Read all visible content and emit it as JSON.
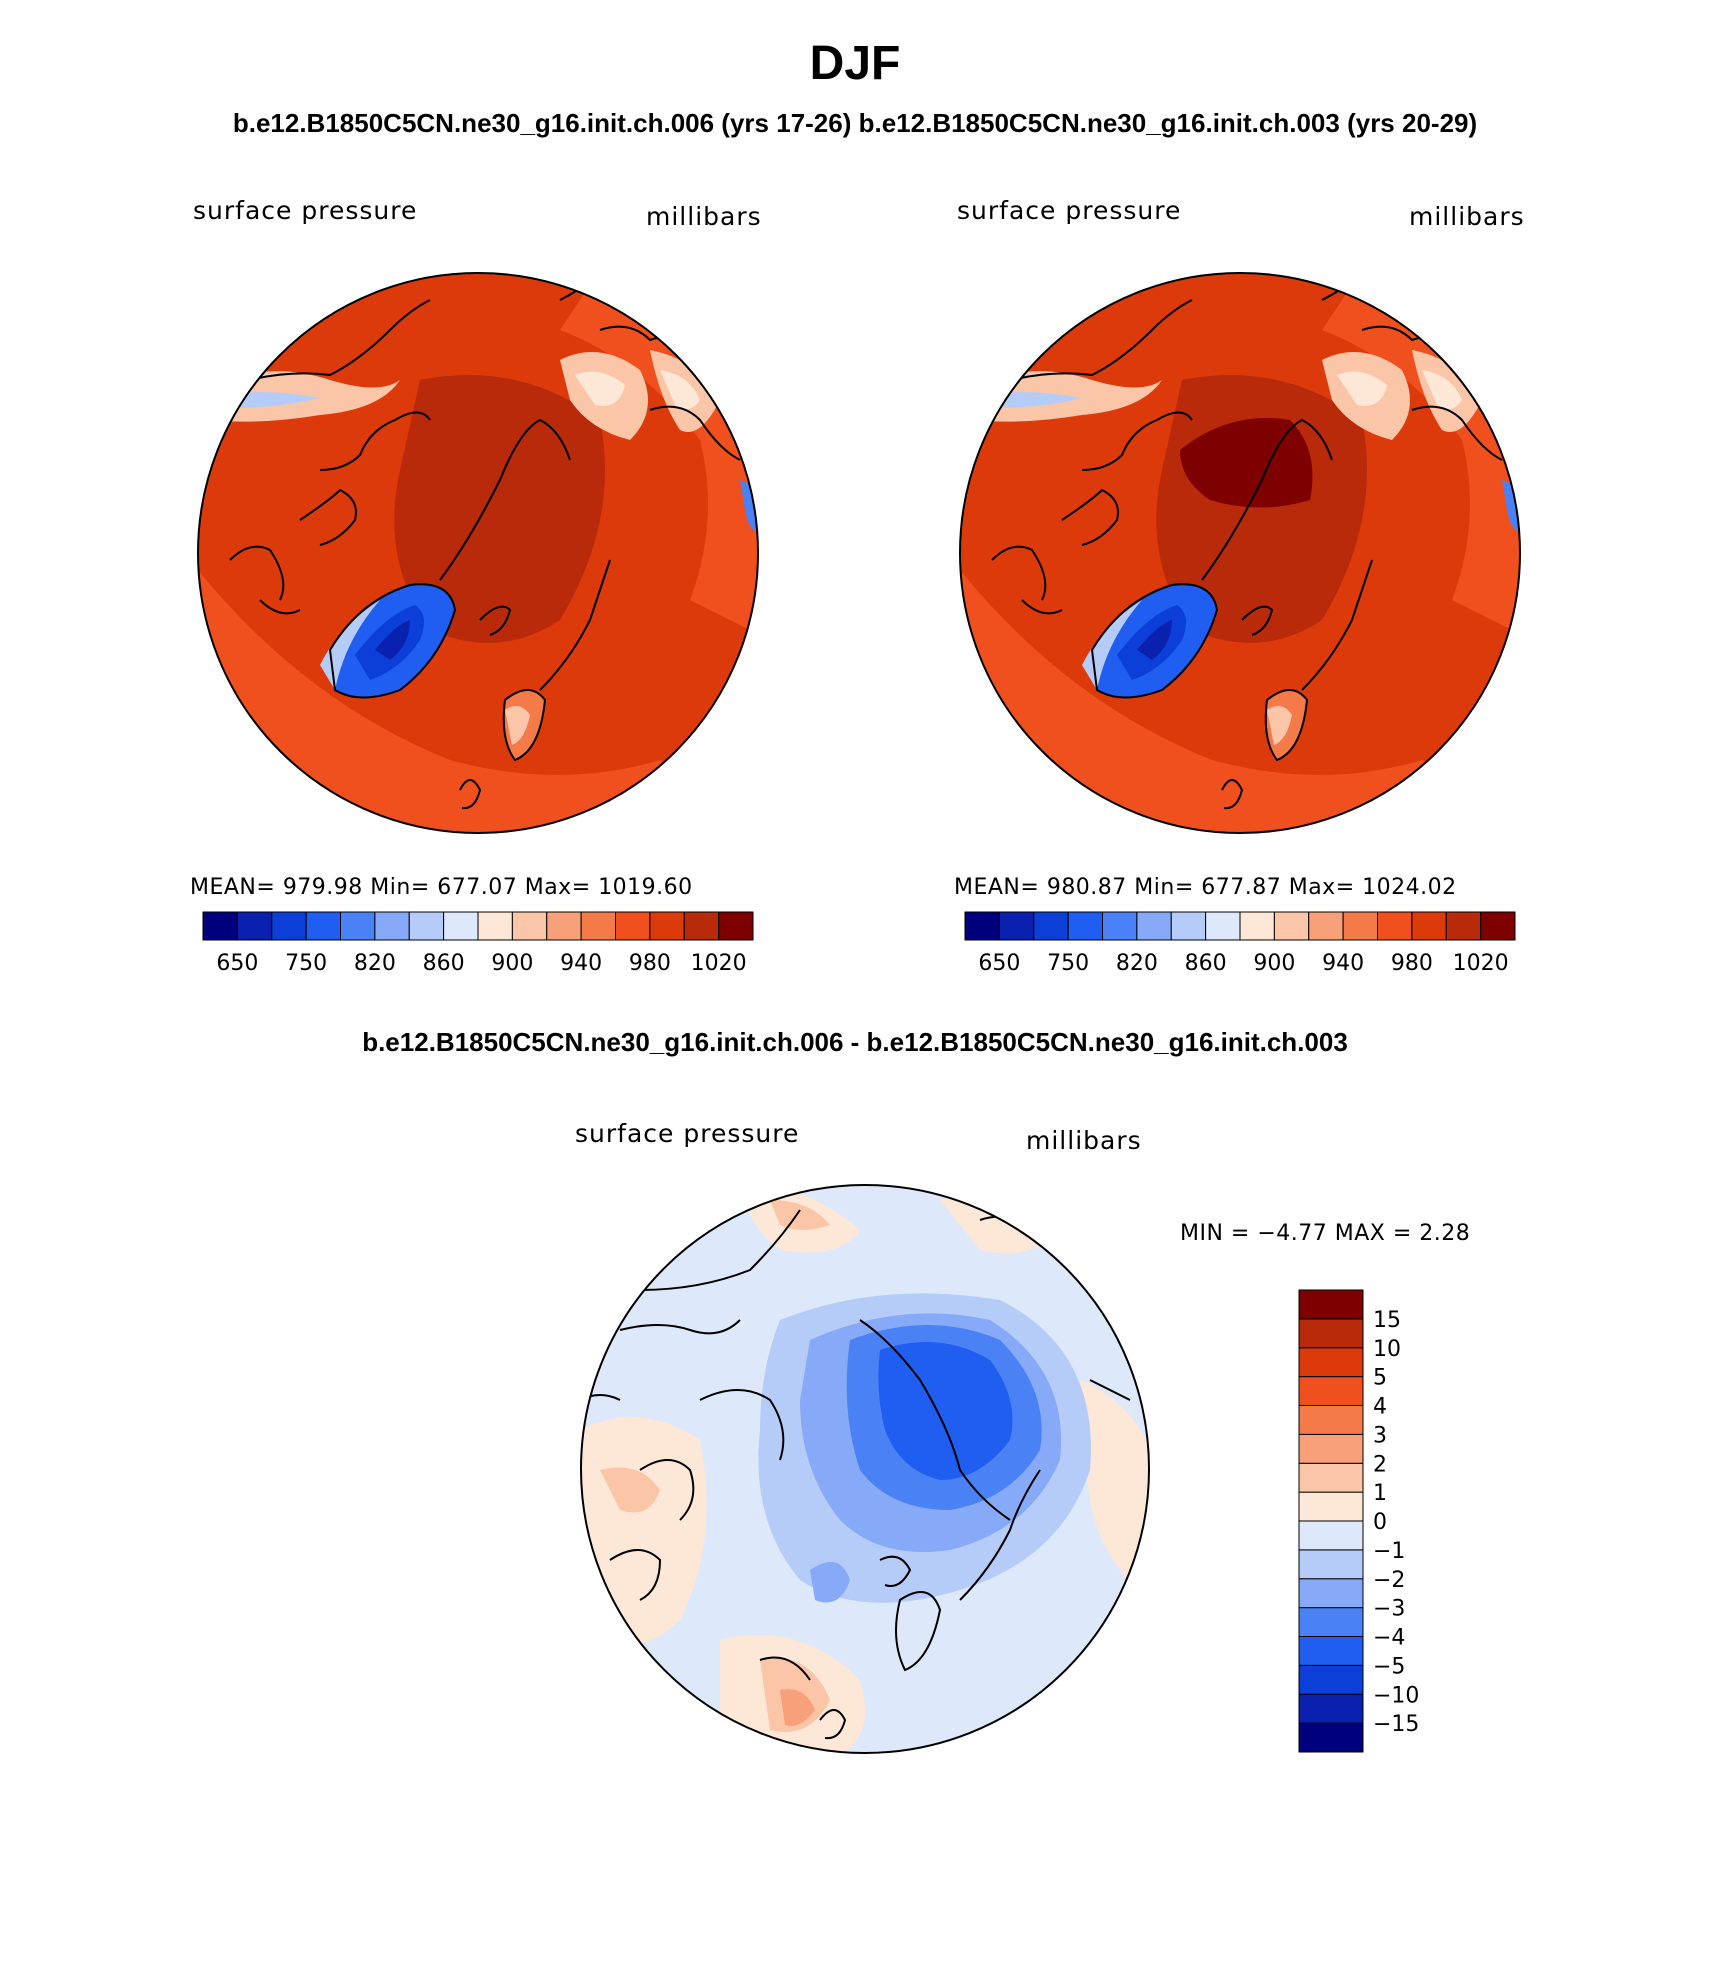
{
  "title": "DJF",
  "subtitle": "b.e12.B1850C5CN.ne30_g16.init.ch.006 (yrs 17-26)  b.e12.B1850C5CN.ne30_g16.init.ch.003 (yrs 20-29)",
  "difference_title": "b.e12.B1850C5CN.ne30_g16.init.ch.006 - b.e12.B1850C5CN.ne30_g16.init.ch.003",
  "panels": [
    {
      "variable": "surface pressure",
      "units": "millibars",
      "stats": "MEAN= 979.98   Min= 677.07   Max= 1019.60",
      "mean": 979.98,
      "min": 677.07,
      "max": 1019.6
    },
    {
      "variable": "surface pressure",
      "units": "millibars",
      "stats": "MEAN= 980.87   Min= 677.87   Max= 1024.02",
      "mean": 980.87,
      "min": 677.87,
      "max": 1024.02
    }
  ],
  "difference_panel": {
    "variable": "surface pressure",
    "units": "millibars",
    "stats": "MIN =   −4.77  MAX =     2.28",
    "min": -4.77,
    "max": 2.28
  },
  "abs_colorbar": {
    "colors": [
      "#00007f",
      "#0a21b0",
      "#0b3fd8",
      "#1f5ef0",
      "#4a82f5",
      "#86aaf7",
      "#b6ccf8",
      "#dde9fb",
      "#fde7d6",
      "#fbc5a7",
      "#f7a07a",
      "#f57a4a",
      "#f04f1e",
      "#dd3a0c",
      "#b82a0a",
      "#7f0000"
    ],
    "tick_labels": [
      "650",
      "750",
      "820",
      "860",
      "900",
      "940",
      "980",
      "1020"
    ]
  },
  "diff_colorbar": {
    "colors": [
      "#00007f",
      "#0a21b0",
      "#0b3fd8",
      "#1f5ef0",
      "#4a82f5",
      "#86aaf7",
      "#b6ccf8",
      "#dde9fb",
      "#fde7d6",
      "#fbc5a7",
      "#f7a07a",
      "#f57a4a",
      "#f04f1e",
      "#dd3a0c",
      "#b82a0a",
      "#7f0000"
    ],
    "tick_labels": [
      "−15",
      "−10",
      "−5",
      "−4",
      "−3",
      "−2",
      "−1",
      "0",
      "1",
      "2",
      "3",
      "4",
      "5",
      "10",
      "15"
    ]
  }
}
